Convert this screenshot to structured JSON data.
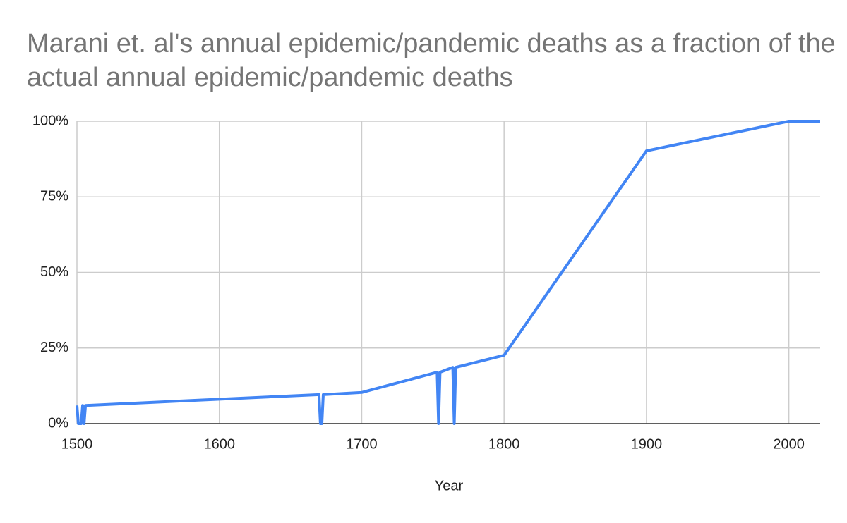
{
  "chart_data": {
    "type": "line",
    "title": "Marani et. al's annual epidemic/pandemic deaths as a fraction of the actual annual epidemic/pandemic deaths",
    "x_label": "Year",
    "x": [
      1500,
      1501,
      1503,
      1504,
      1505,
      1506,
      1670,
      1671,
      1672,
      1673,
      1700,
      1753,
      1754,
      1755,
      1764,
      1765,
      1766,
      1800,
      1900,
      2000,
      2022
    ],
    "values": [
      6,
      0,
      0,
      6,
      0,
      6,
      9.6,
      0,
      0,
      9.6,
      10.3,
      17,
      0,
      17,
      18.6,
      0,
      18.6,
      22.6,
      90.2,
      100,
      100
    ],
    "color": "#4285f4",
    "xlim": [
      1500,
      2022
    ],
    "xticks": [
      1500,
      1600,
      1700,
      1800,
      1900,
      2000
    ],
    "ylim": [
      0,
      100
    ],
    "yticks": [
      {
        "value": 0,
        "label": "0%"
      },
      {
        "value": 25,
        "label": "25%"
      },
      {
        "value": 50,
        "label": "50%"
      },
      {
        "value": 75,
        "label": "75%"
      },
      {
        "value": 100,
        "label": "100%"
      }
    ],
    "grid": true
  }
}
